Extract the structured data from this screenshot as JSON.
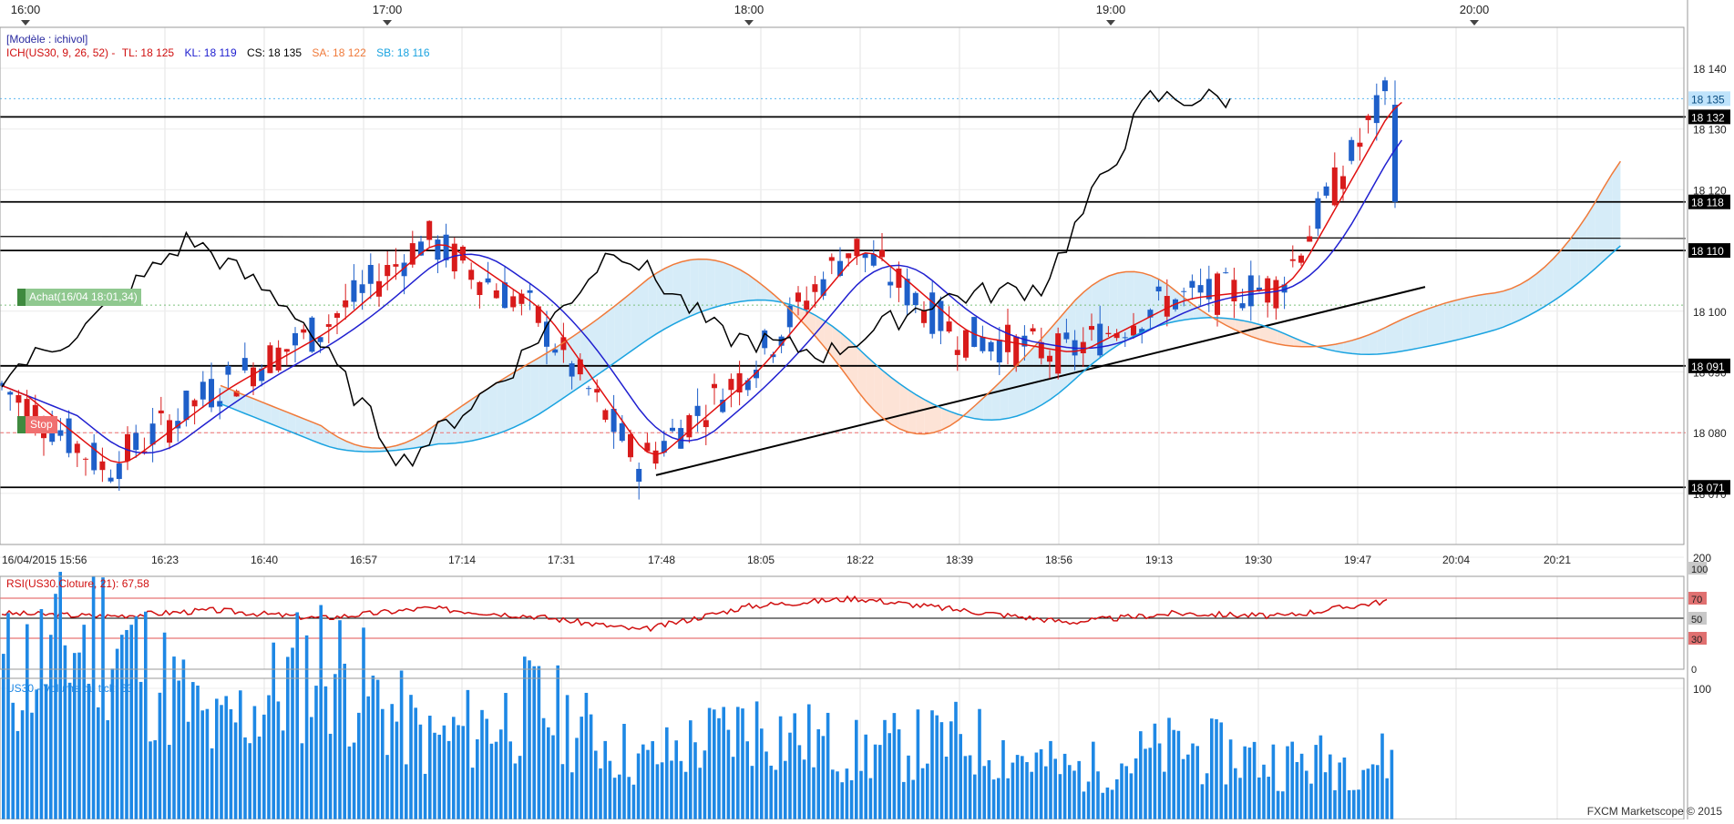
{
  "top_time_labels": [
    "16:00",
    "17:00",
    "18:00",
    "19:00",
    "20:00"
  ],
  "bottom_time_labels": [
    "16/04/2015 15:56",
    "16:23",
    "16:40",
    "16:57",
    "17:14",
    "17:31",
    "17:48",
    "18:05",
    "18:22",
    "18:39",
    "18:56",
    "19:13",
    "19:30",
    "19:47",
    "20:04",
    "20:21"
  ],
  "legend": {
    "template": "[Modèle : ichivol]",
    "ich_prefix": "ICH(US30, 9, 26, 52) -",
    "tl": "TL: 18 125",
    "kl": "KL: 18 119",
    "cs": "CS: 18 135",
    "sa": "SA: 18 122",
    "sb": "SB: 18 116"
  },
  "order_labels": {
    "buy": "Achat(16/04 18:01,34)",
    "stop": "Stop"
  },
  "hline_labels": {
    "current": "18 135",
    "h1": "18 132",
    "h2": "18 118",
    "h3": "18 110",
    "h4": "18 091",
    "h5": "18 071"
  },
  "rsi_title": "RSI(US30.Cloture, 21): 67,58",
  "volume_title": "US30 - Volume du tick: 63",
  "copyright": "FXCM Marketscope © 2015",
  "colors": {
    "bull": "#1e5fc9",
    "bear": "#d81b1b",
    "tl": "#e01010",
    "kl": "#2020d0",
    "cs": "#000000",
    "sa": "#f07a3a",
    "sb": "#1aa3e0",
    "cloud_up": "#d6ecf8",
    "cloud_down": "#fde3d6",
    "rsi": "#d01010",
    "volume": "#1e88e5",
    "current_price": "#5bb8f0"
  },
  "chart_data": [
    {
      "type": "candlestick",
      "title": "US30",
      "x": [
        "15:56",
        "16:23",
        "16:40",
        "16:57",
        "17:14",
        "17:31",
        "17:48",
        "18:05",
        "18:22",
        "18:39",
        "18:56",
        "19:13",
        "19:30",
        "19:47"
      ],
      "close": [
        18088,
        18074,
        18087,
        18097,
        18112,
        18100,
        18075,
        18090,
        18111,
        18096,
        18093,
        18102,
        18104,
        18135
      ],
      "y_ticks": [
        18070,
        18080,
        18090,
        18100,
        18110,
        18120,
        18130,
        18140
      ],
      "ylim": [
        18064,
        18145
      ],
      "horizontal_lines": [
        18132,
        18118,
        18112,
        18110,
        18091,
        18071
      ],
      "orders": [
        {
          "label": "Achat(16/04 18:01,34)",
          "price": 18101
        },
        {
          "label": "Stop",
          "price": 18080
        }
      ],
      "trendline": {
        "from": [
          "17:48",
          18073
        ],
        "to": [
          "19:50",
          18104
        ]
      },
      "series": [
        {
          "name": "TL",
          "last": 18125
        },
        {
          "name": "KL",
          "last": 18119
        },
        {
          "name": "CS",
          "last": 18135
        },
        {
          "name": "SA",
          "last": 18122
        },
        {
          "name": "SB",
          "last": 18116
        }
      ]
    },
    {
      "type": "line",
      "title": "RSI(US30.Cloture, 21)",
      "last": 67.58,
      "y_ticks": [
        0,
        30,
        50,
        70,
        100
      ],
      "ylim": [
        0,
        100
      ],
      "levels": [
        30,
        50,
        70
      ],
      "series": [
        {
          "name": "RSI",
          "values": [
            55,
            52,
            58,
            50,
            60,
            52,
            38,
            62,
            70,
            58,
            46,
            55,
            52,
            67.58
          ]
        }
      ]
    },
    {
      "type": "bar",
      "title": "US30 - Volume du tick",
      "last": 63,
      "y_ticks": [
        100,
        200
      ],
      "ylim": [
        0,
        230
      ],
      "values": [
        150,
        200,
        90,
        170,
        80,
        120,
        60,
        100,
        70,
        85,
        50,
        75,
        60,
        63
      ]
    }
  ]
}
